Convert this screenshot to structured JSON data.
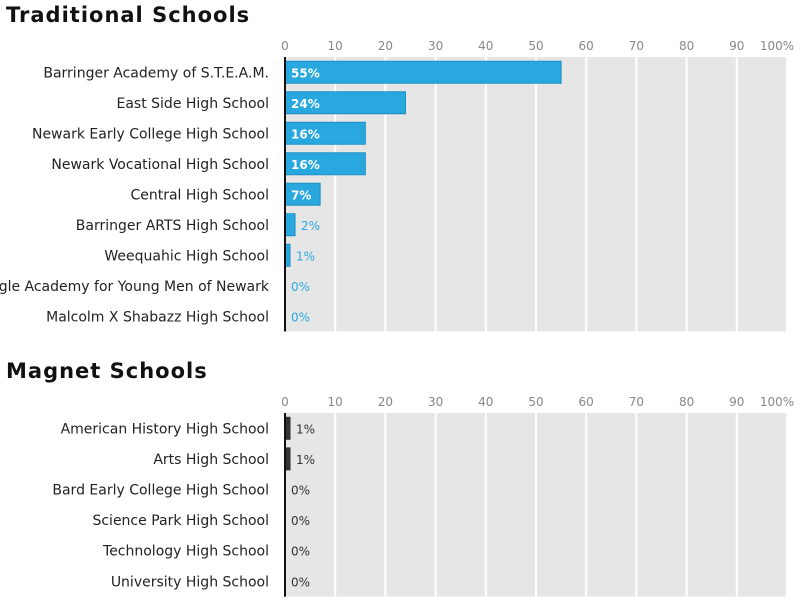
{
  "chart_data": [
    {
      "type": "bar",
      "title": "Traditional Schools",
      "categories": [
        "Barringer Academy of S.T.E.A.M.",
        "East Side High School",
        "Newark Early College High School",
        "Newark Vocational High School",
        "Central High School",
        "Barringer ARTS High School",
        "Weequahic High School",
        "Eagle Academy for Young Men of Newark",
        "Malcolm X Shabazz High School"
      ],
      "values": [
        55,
        24,
        16,
        16,
        7,
        2,
        1,
        0,
        0
      ],
      "data_labels": [
        "55%",
        "24%",
        "16%",
        "16%",
        "7%",
        "2%",
        "1%",
        "0%",
        "0%"
      ],
      "xlim": [
        0,
        100
      ],
      "x_ticks": [
        "0",
        "10",
        "20",
        "30",
        "40",
        "50",
        "60",
        "70",
        "80",
        "90",
        "100%"
      ],
      "bar_color": "#29a8e0",
      "grid": true
    },
    {
      "type": "bar",
      "title": "Magnet Schools",
      "categories": [
        "American History High School",
        "Arts High School",
        "Bard Early College High School",
        "Science Park High School",
        "Technology High School",
        "University High School"
      ],
      "values": [
        1,
        1,
        0,
        0,
        0,
        0
      ],
      "data_labels": [
        "1%",
        "1%",
        "0%",
        "0%",
        "0%",
        "0%"
      ],
      "xlim": [
        0,
        100
      ],
      "x_ticks": [
        "0",
        "10",
        "20",
        "30",
        "40",
        "50",
        "60",
        "70",
        "80",
        "90",
        "100%"
      ],
      "bar_color": "#333333",
      "grid": true
    }
  ]
}
